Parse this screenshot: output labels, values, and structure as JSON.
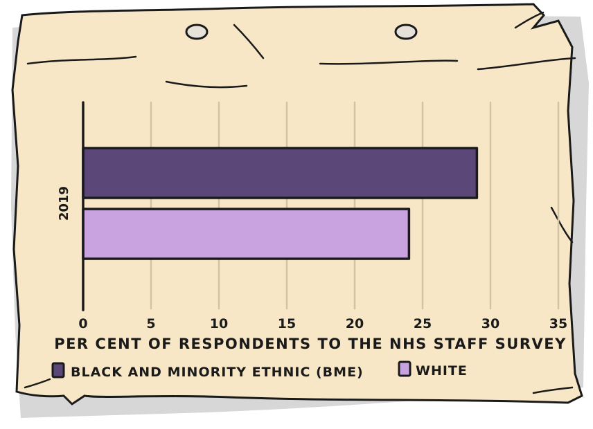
{
  "chart_data": {
    "type": "bar",
    "orientation": "horizontal",
    "categories": [
      "2019"
    ],
    "series": [
      {
        "name": "BLACK AND MINORITY ETHNIC (BME)",
        "color": "#5b4878",
        "values": [
          29
        ]
      },
      {
        "name": "WHITE",
        "color": "#c9a3e0",
        "values": [
          24
        ]
      }
    ],
    "xlabel": "PER CENT OF RESPONDENTS TO THE NHS STAFF SURVEY",
    "ylabel": "",
    "xlim": [
      0,
      35
    ],
    "xticks": [
      "0",
      "5",
      "10",
      "15",
      "20",
      "25",
      "30",
      "35"
    ],
    "grid": true,
    "legend_position": "bottom"
  },
  "colors": {
    "paper": "#f7e7c6",
    "paper_shadow": "#c7c7c7",
    "ink": "#1a1a1a",
    "grid": "#d2c3a4"
  }
}
